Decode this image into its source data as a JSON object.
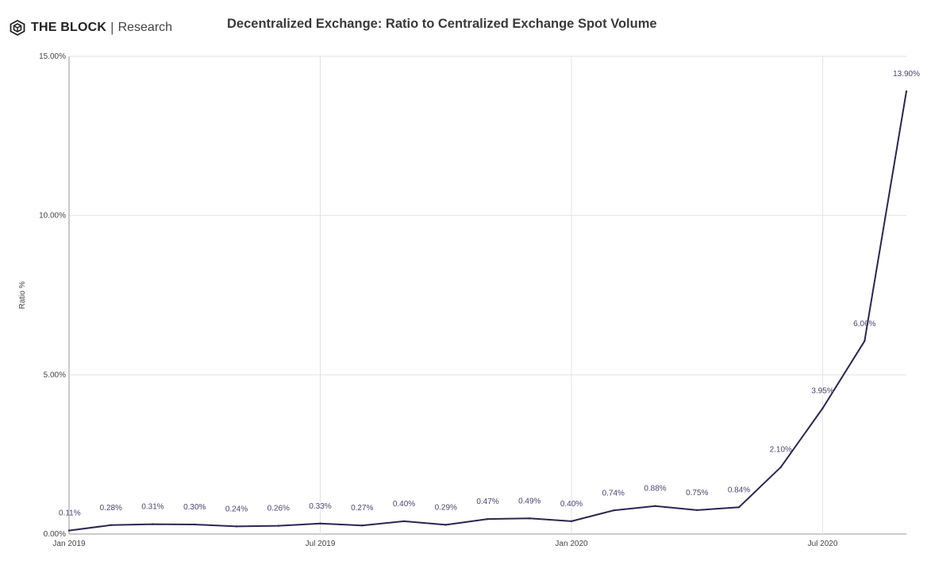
{
  "brand": {
    "name": "THE BLOCK",
    "separator": "|",
    "subtitle": "Research",
    "logo_icon": "cube-icon"
  },
  "chart_data": {
    "type": "line",
    "title": "Decentralized Exchange: Ratio to Centralized Exchange Spot Volume",
    "xlabel": "",
    "ylabel": "Ratio %",
    "ylim": [
      0,
      15
    ],
    "y_ticks": [
      "0.00%",
      "5.00%",
      "10.00%",
      "15.00%"
    ],
    "y_tick_values": [
      0,
      5,
      10,
      15
    ],
    "x_ticks": [
      "Jan 2019",
      "Jul 2019",
      "Jan 2020",
      "Jul 2020"
    ],
    "x_tick_values": [
      "2019-01",
      "2019-07",
      "2020-01",
      "2020-07"
    ],
    "x": [
      "2019-01",
      "2019-02",
      "2019-03",
      "2019-04",
      "2019-05",
      "2019-06",
      "2019-07",
      "2019-08",
      "2019-09",
      "2019-10",
      "2019-11",
      "2019-12",
      "2020-01",
      "2020-02",
      "2020-03",
      "2020-04",
      "2020-05",
      "2020-06",
      "2020-07",
      "2020-08",
      "2020-09"
    ],
    "series": [
      {
        "values": [
          0.11,
          0.28,
          0.31,
          0.3,
          0.24,
          0.26,
          0.33,
          0.27,
          0.4,
          0.29,
          0.47,
          0.49,
          0.4,
          0.74,
          0.88,
          0.75,
          0.84,
          2.1,
          3.95,
          6.06,
          13.9
        ],
        "labels": [
          "0.11%",
          "0.28%",
          "0.31%",
          "0.30%",
          "0.24%",
          "0.26%",
          "0.33%",
          "0.27%",
          "0.40%",
          "0.29%",
          "0.47%",
          "0.49%",
          "0.40%",
          "0.74%",
          "0.88%",
          "0.75%",
          "0.84%",
          "2.10%",
          "3.95%",
          "6.06%",
          "13.90%"
        ],
        "color": "#2b2650"
      }
    ],
    "grid": true,
    "colors": {
      "line": "#2b2650",
      "label": "#4a4470",
      "grid": "#e3e3e3",
      "axis": "#9a9a9a"
    }
  }
}
